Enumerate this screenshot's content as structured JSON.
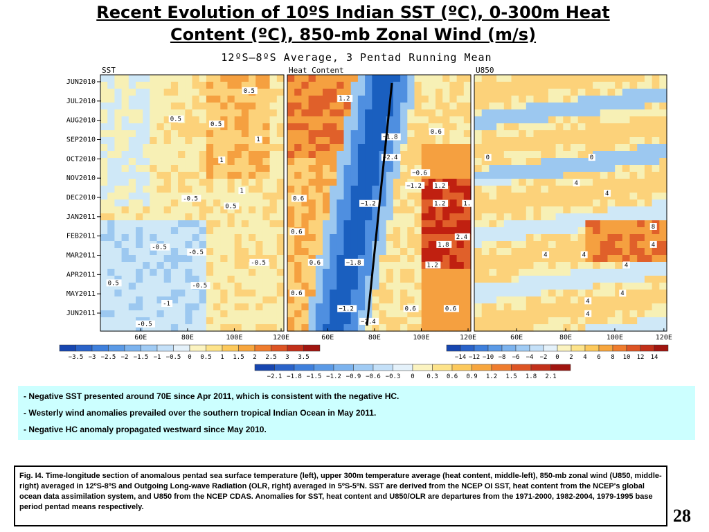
{
  "header": {
    "title_line1": "Recent Evolution of 10ºS Indian SST (ºC), 0-300m Heat",
    "title_line2": "Content (ºC), 850-mb Zonal Wind (m/s)",
    "subtitle": "12ºS–8ºS Average, 3 Pentad Running Mean"
  },
  "chart_data": [
    {
      "type": "heatmap",
      "title": "SST",
      "x_ticks": [
        "60E",
        "80E",
        "100E",
        "120E"
      ],
      "y_ticks": [
        "JUN2010",
        "JUL2010",
        "AUG2010",
        "SEP2010",
        "OCT2010",
        "NOV2010",
        "DEC2010",
        "JAN2011",
        "FEB2011",
        "MAR2011",
        "APR2011",
        "MAY2011",
        "JUN2011"
      ],
      "contour_labels": [
        "0.5",
        "0.5",
        "0.5",
        "1",
        "1",
        "1",
        "-0.5",
        "0.5",
        "-0.5",
        "-0.5",
        "-0.5",
        "-0.5",
        "-1",
        "-0.5",
        "0.5"
      ],
      "colorbar_values": [
        "−3.5",
        "−3",
        "−2.5",
        "−2",
        "−1.5",
        "−1",
        "−0.5",
        "0",
        "0.5",
        "1",
        "1.5",
        "2",
        "2.5",
        "3",
        "3.5"
      ]
    },
    {
      "type": "heatmap",
      "title": "Heat Content",
      "x_ticks": [
        "60E",
        "80E",
        "100E",
        "120E"
      ],
      "contour_labels": [
        "1.2",
        "0.6",
        "−1.8",
        "−2.4",
        "−0.6",
        "−1.2",
        "1.2",
        "0.6",
        "−1.2",
        "1.2",
        "1.",
        "0.6",
        "2.4",
        "1.8",
        "0.6",
        "−1.8",
        "1.2",
        "0.6",
        "−1.2",
        "0.6",
        "0.6",
        "−2.4"
      ],
      "colorbar_values": [
        "−2.1",
        "−1.8",
        "−1.5",
        "−1.2",
        "−0.9",
        "−0.6",
        "−0.3",
        "0",
        "0.3",
        "0.6",
        "0.9",
        "1.2",
        "1.5",
        "1.8",
        "2.1"
      ]
    },
    {
      "type": "heatmap",
      "title": "U850",
      "x_ticks": [
        "60E",
        "80E",
        "100E",
        "120E"
      ],
      "contour_labels": [
        "0",
        "0",
        "4",
        "4",
        "8",
        "4",
        "4",
        "4",
        "4",
        "4",
        "4",
        "4"
      ],
      "colorbar_values": [
        "−14",
        "−12",
        "−10",
        "−8",
        "−6",
        "−4",
        "−2",
        "0",
        "2",
        "4",
        "6",
        "8",
        "10",
        "12",
        "14"
      ]
    }
  ],
  "bullets": [
    "- Negative SST presented around 70E since Apr 2011, which is consistent with the negative HC.",
    "- Westerly wind anomalies prevailed over the southern tropical Indian Ocean in May 2011.",
    "- Negative HC anomaly propagated westward since May 2010."
  ],
  "caption": "Fig. I4. Time-longitude section of anomalous pentad sea surface temperature (left), upper 300m temperature average (heat content, middle-left), 850-mb zonal wind (U850, middle-right) averaged in 12ºS-8ºS and Outgoing Long-wave Radiation (OLR, right) averaged in 5ºS-5ºN. SST are derived from the NCEP OI SST, heat content from the NCEP's global ocean data assimilation system, and U850 from the NCEP CDAS. Anomalies for SST, heat content and U850/OLR are departures from the 1971-2000, 1982-2004, 1979-1995 base period pentad means respectively.",
  "page_number": "28",
  "colors": {
    "neg_strong": "#1a5fbf",
    "neg_mid": "#4f8fe0",
    "neg_light": "#9cc8f0",
    "neutral_neg": "#cfe8f7",
    "neutral_pos": "#f7f0b5",
    "pos_light": "#fcd27a",
    "pos_mid": "#f5a040",
    "pos_strong": "#e0602a",
    "pos_max": "#c02010",
    "bullet_bg": "#ccffff"
  }
}
